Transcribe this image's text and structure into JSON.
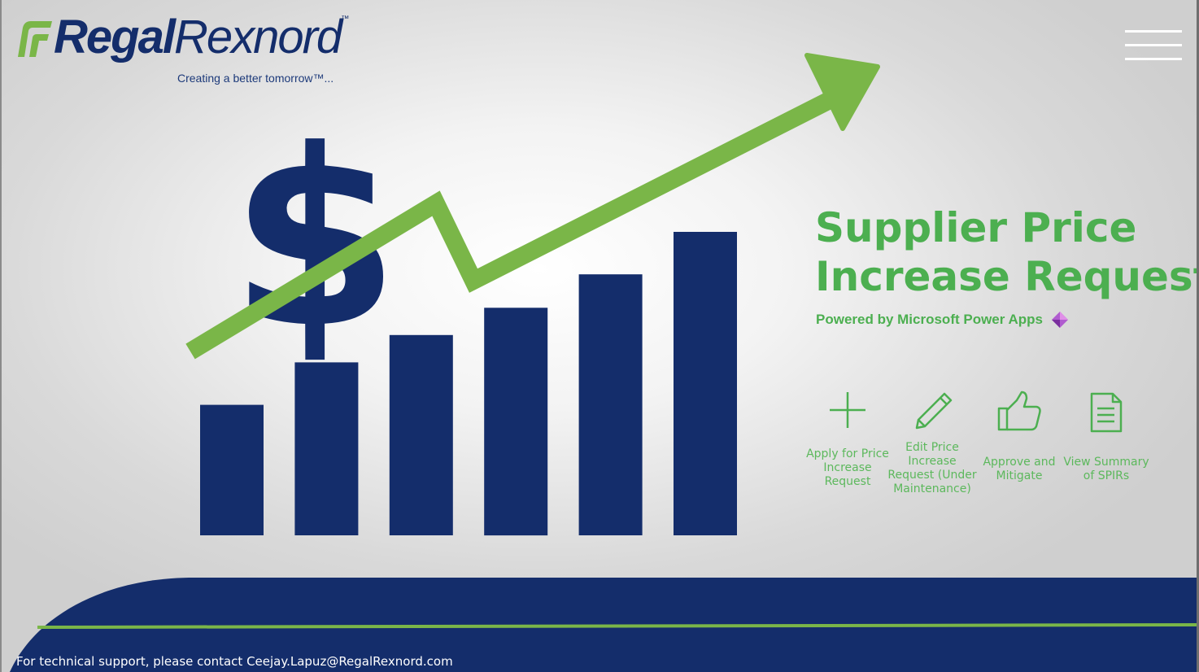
{
  "brand": {
    "logo_bold": "Regal",
    "logo_light": "Rexnord",
    "trademark": "™",
    "tagline": "Creating a better tomorrow™..."
  },
  "header": {
    "menu_icon": "hamburger-menu-icon"
  },
  "illustration": {
    "currency_symbol": "$",
    "bars": [
      0.43,
      0.57,
      0.66,
      0.75,
      0.86,
      1.0
    ],
    "colors": {
      "bars": "#142d6b",
      "arrow": "#7ab648"
    }
  },
  "main": {
    "title_line1": "Supplier Price",
    "title_line2": "Increase Request",
    "subtitle": "Powered by Microsoft Power Apps",
    "subtitle_icon": "power-apps-icon"
  },
  "actions": [
    {
      "icon": "plus-icon",
      "label": "Apply for Price Increase Request"
    },
    {
      "icon": "pencil-icon",
      "label": "Edit Price Increase Request (Under Maintenance)"
    },
    {
      "icon": "thumbs-up-icon",
      "label": "Approve and Mitigate"
    },
    {
      "icon": "document-icon",
      "label": "View Summary of SPIRs"
    }
  ],
  "footer": {
    "support_text": "For technical support, please contact Ceejay.Lapuz@RegalRexnord.com"
  },
  "colors": {
    "navy": "#142d6b",
    "green": "#4caf50",
    "accent_green": "#7ab648"
  }
}
